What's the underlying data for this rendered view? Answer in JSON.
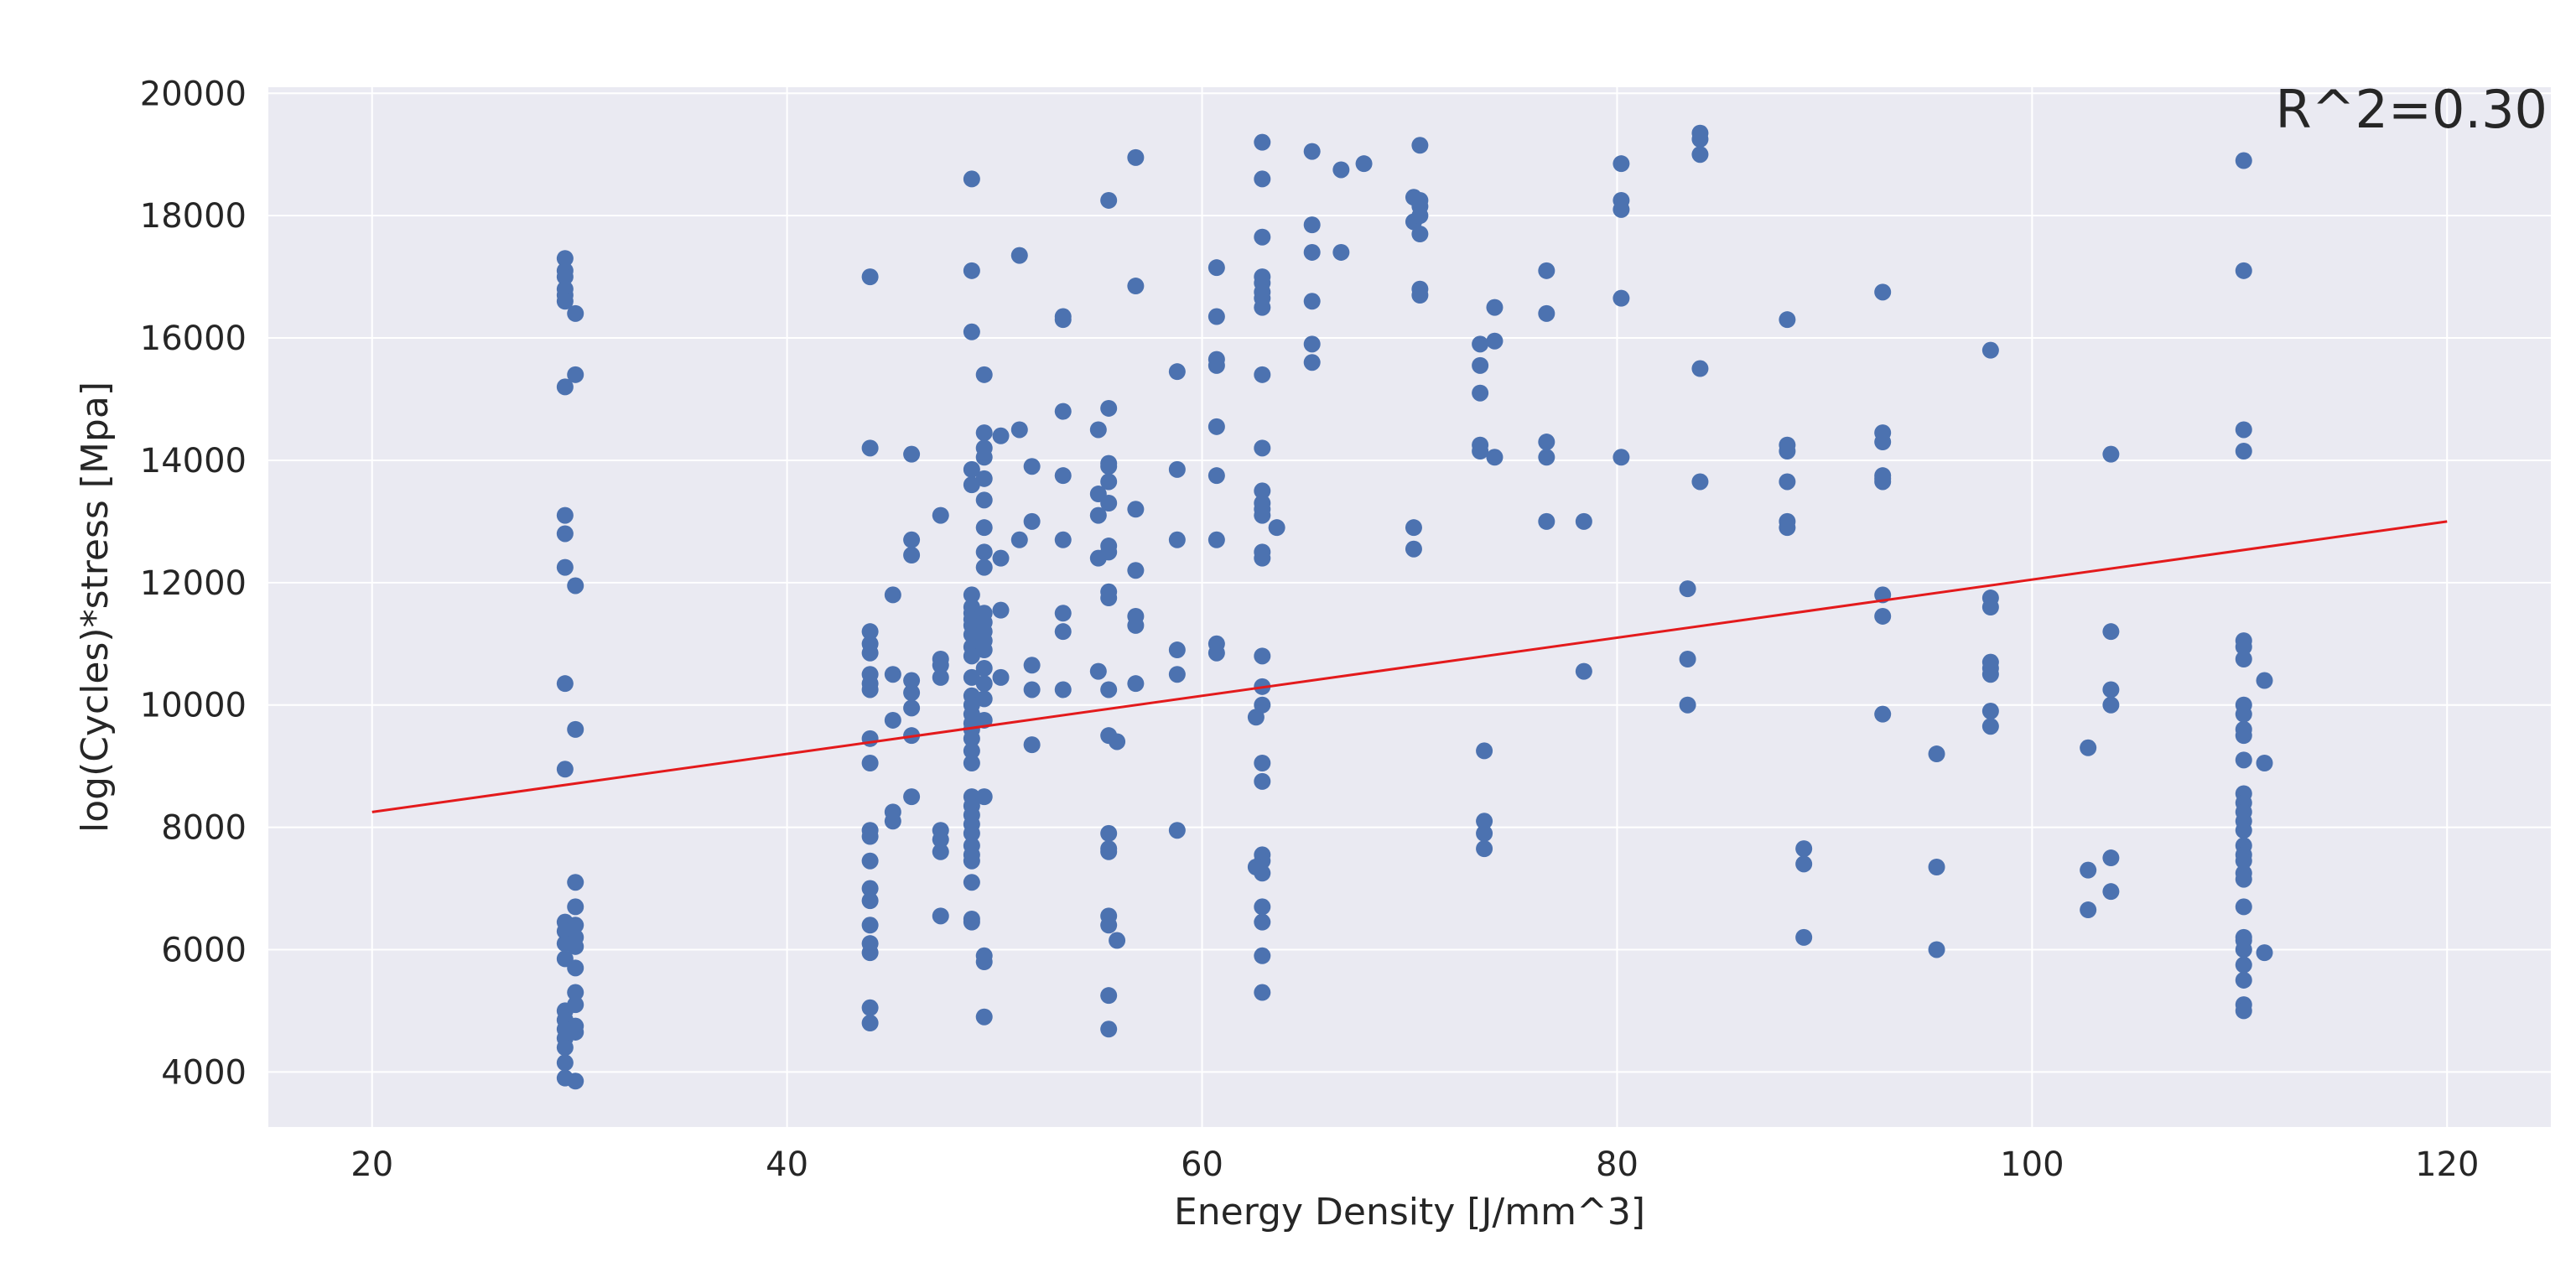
{
  "chart_data": {
    "type": "scatter",
    "title": "",
    "xlabel": "Energy Density [J/mm^3]",
    "ylabel": "log(Cycles)*stress [Mpa]",
    "xlim": [
      15,
      125
    ],
    "ylim": [
      3100,
      20100
    ],
    "xticks": [
      20,
      40,
      60,
      80,
      100,
      120
    ],
    "yticks": [
      4000,
      6000,
      8000,
      10000,
      12000,
      14000,
      16000,
      18000,
      20000
    ],
    "grid": true,
    "annotation": "R^2=0.30",
    "colors": {
      "points": "#4c72b0",
      "fit_line": "#e31a1c",
      "plot_bg": "#eaeaf2",
      "grid": "#ffffff"
    },
    "fit_line": {
      "x": [
        20,
        120
      ],
      "y": [
        8250,
        13000
      ]
    },
    "points": [
      [
        29.3,
        17300
      ],
      [
        29.3,
        17100
      ],
      [
        29.3,
        17000
      ],
      [
        29.3,
        16800
      ],
      [
        29.3,
        16700
      ],
      [
        29.3,
        16600
      ],
      [
        29.8,
        16400
      ],
      [
        29.8,
        15400
      ],
      [
        29.3,
        15200
      ],
      [
        29.3,
        13100
      ],
      [
        29.3,
        12800
      ],
      [
        29.3,
        12250
      ],
      [
        29.8,
        11950
      ],
      [
        29.3,
        10350
      ],
      [
        29.8,
        9600
      ],
      [
        29.3,
        8950
      ],
      [
        29.8,
        7100
      ],
      [
        29.8,
        6700
      ],
      [
        29.3,
        6450
      ],
      [
        29.8,
        6400
      ],
      [
        29.3,
        6300
      ],
      [
        29.8,
        6200
      ],
      [
        29.3,
        6100
      ],
      [
        29.8,
        6050
      ],
      [
        29.3,
        5850
      ],
      [
        29.8,
        5700
      ],
      [
        29.8,
        5300
      ],
      [
        29.8,
        5100
      ],
      [
        29.3,
        5000
      ],
      [
        29.3,
        4850
      ],
      [
        29.8,
        4750
      ],
      [
        29.3,
        4700
      ],
      [
        29.8,
        4650
      ],
      [
        29.3,
        4550
      ],
      [
        29.3,
        4400
      ],
      [
        29.3,
        4150
      ],
      [
        29.3,
        3900
      ],
      [
        29.8,
        3850
      ],
      [
        44,
        17000
      ],
      [
        44,
        14200
      ],
      [
        44,
        11200
      ],
      [
        44,
        11000
      ],
      [
        44,
        10850
      ],
      [
        44,
        10500
      ],
      [
        44,
        10350
      ],
      [
        44,
        10250
      ],
      [
        44,
        9450
      ],
      [
        44,
        9050
      ],
      [
        44,
        7950
      ],
      [
        44,
        7850
      ],
      [
        44,
        7450
      ],
      [
        44,
        7000
      ],
      [
        44,
        6800
      ],
      [
        44,
        6400
      ],
      [
        44,
        6100
      ],
      [
        44,
        5950
      ],
      [
        44,
        5050
      ],
      [
        44,
        4800
      ],
      [
        45.1,
        11800
      ],
      [
        45.1,
        10500
      ],
      [
        45.1,
        9750
      ],
      [
        45.1,
        8250
      ],
      [
        45.1,
        8100
      ],
      [
        46,
        14100
      ],
      [
        46,
        12700
      ],
      [
        46,
        12450
      ],
      [
        46,
        10400
      ],
      [
        46,
        10200
      ],
      [
        46,
        9950
      ],
      [
        46,
        9500
      ],
      [
        46,
        8500
      ],
      [
        47.4,
        13100
      ],
      [
        47.4,
        10750
      ],
      [
        47.4,
        10650
      ],
      [
        47.4,
        10450
      ],
      [
        47.4,
        7950
      ],
      [
        47.4,
        7800
      ],
      [
        47.4,
        7600
      ],
      [
        47.4,
        6550
      ],
      [
        48.9,
        18600
      ],
      [
        48.9,
        17100
      ],
      [
        48.9,
        16100
      ],
      [
        48.9,
        13850
      ],
      [
        48.9,
        13600
      ],
      [
        48.9,
        11800
      ],
      [
        48.9,
        11600
      ],
      [
        48.9,
        11500
      ],
      [
        48.9,
        11400
      ],
      [
        48.9,
        11300
      ],
      [
        48.9,
        11150
      ],
      [
        48.9,
        10950
      ],
      [
        48.9,
        10800
      ],
      [
        48.9,
        10450
      ],
      [
        48.9,
        10150
      ],
      [
        48.9,
        10000
      ],
      [
        48.9,
        9850
      ],
      [
        48.9,
        9700
      ],
      [
        48.9,
        9600
      ],
      [
        48.9,
        9450
      ],
      [
        48.9,
        9250
      ],
      [
        48.9,
        9050
      ],
      [
        48.9,
        8500
      ],
      [
        48.9,
        8350
      ],
      [
        48.9,
        8200
      ],
      [
        48.9,
        8050
      ],
      [
        48.9,
        7900
      ],
      [
        48.9,
        7700
      ],
      [
        48.9,
        7550
      ],
      [
        48.9,
        7450
      ],
      [
        48.9,
        7100
      ],
      [
        48.9,
        6500
      ],
      [
        48.9,
        6450
      ],
      [
        49.5,
        15400
      ],
      [
        49.5,
        14450
      ],
      [
        49.5,
        14200
      ],
      [
        49.5,
        14050
      ],
      [
        49.5,
        13700
      ],
      [
        49.5,
        13350
      ],
      [
        49.5,
        12900
      ],
      [
        49.5,
        12500
      ],
      [
        49.5,
        12250
      ],
      [
        49.5,
        11500
      ],
      [
        49.5,
        11350
      ],
      [
        49.5,
        11200
      ],
      [
        49.5,
        11050
      ],
      [
        49.5,
        10900
      ],
      [
        49.5,
        10600
      ],
      [
        49.5,
        10350
      ],
      [
        49.5,
        10100
      ],
      [
        49.5,
        9750
      ],
      [
        49.5,
        8500
      ],
      [
        49.5,
        5900
      ],
      [
        49.5,
        5800
      ],
      [
        49.5,
        4900
      ],
      [
        50.3,
        14400
      ],
      [
        50.3,
        12400
      ],
      [
        50.3,
        11550
      ],
      [
        50.3,
        10450
      ],
      [
        51.2,
        17350
      ],
      [
        51.2,
        14500
      ],
      [
        51.2,
        12700
      ],
      [
        51.8,
        13900
      ],
      [
        51.8,
        13000
      ],
      [
        51.8,
        10650
      ],
      [
        51.8,
        10250
      ],
      [
        51.8,
        9350
      ],
      [
        53.3,
        16350
      ],
      [
        53.3,
        16300
      ],
      [
        53.3,
        14800
      ],
      [
        53.3,
        13750
      ],
      [
        53.3,
        12700
      ],
      [
        53.3,
        11500
      ],
      [
        53.3,
        11200
      ],
      [
        53.3,
        10250
      ],
      [
        55,
        14500
      ],
      [
        55,
        13450
      ],
      [
        55,
        13100
      ],
      [
        55,
        12400
      ],
      [
        55,
        10550
      ],
      [
        55.5,
        18250
      ],
      [
        55.5,
        14850
      ],
      [
        55.5,
        13950
      ],
      [
        55.5,
        13900
      ],
      [
        55.5,
        13650
      ],
      [
        55.5,
        13300
      ],
      [
        55.5,
        12600
      ],
      [
        55.5,
        12500
      ],
      [
        55.5,
        11850
      ],
      [
        55.5,
        11750
      ],
      [
        55.5,
        10250
      ],
      [
        55.5,
        9500
      ],
      [
        55.5,
        7900
      ],
      [
        55.5,
        7650
      ],
      [
        55.5,
        7600
      ],
      [
        55.5,
        6550
      ],
      [
        55.5,
        6400
      ],
      [
        55.5,
        5250
      ],
      [
        55.5,
        4700
      ],
      [
        55.9,
        9400
      ],
      [
        55.9,
        6150
      ],
      [
        56.8,
        18950
      ],
      [
        56.8,
        16850
      ],
      [
        56.8,
        13200
      ],
      [
        56.8,
        12200
      ],
      [
        56.8,
        11450
      ],
      [
        56.8,
        11300
      ],
      [
        56.8,
        10350
      ],
      [
        58.8,
        15450
      ],
      [
        58.8,
        13850
      ],
      [
        58.8,
        12700
      ],
      [
        58.8,
        10900
      ],
      [
        58.8,
        10500
      ],
      [
        58.8,
        7950
      ],
      [
        60.7,
        17150
      ],
      [
        60.7,
        16350
      ],
      [
        60.7,
        15650
      ],
      [
        60.7,
        15550
      ],
      [
        60.7,
        14550
      ],
      [
        60.7,
        13750
      ],
      [
        60.7,
        12700
      ],
      [
        60.7,
        11000
      ],
      [
        60.7,
        10850
      ],
      [
        62.9,
        19200
      ],
      [
        62.9,
        18600
      ],
      [
        62.9,
        17650
      ],
      [
        62.9,
        17000
      ],
      [
        62.9,
        16900
      ],
      [
        62.9,
        16750
      ],
      [
        62.9,
        16650
      ],
      [
        62.9,
        16500
      ],
      [
        62.9,
        15400
      ],
      [
        62.9,
        14200
      ],
      [
        62.9,
        13500
      ],
      [
        62.9,
        13300
      ],
      [
        62.9,
        13200
      ],
      [
        62.9,
        13100
      ],
      [
        62.9,
        12500
      ],
      [
        62.9,
        12400
      ],
      [
        62.9,
        10800
      ],
      [
        62.9,
        10300
      ],
      [
        62.9,
        10000
      ],
      [
        62.6,
        9800
      ],
      [
        62.9,
        9050
      ],
      [
        62.9,
        8750
      ],
      [
        62.9,
        7550
      ],
      [
        62.9,
        7450
      ],
      [
        62.6,
        7350
      ],
      [
        62.9,
        7250
      ],
      [
        62.9,
        6700
      ],
      [
        62.9,
        6450
      ],
      [
        62.9,
        5900
      ],
      [
        62.9,
        5300
      ],
      [
        63.6,
        12900
      ],
      [
        65.3,
        19050
      ],
      [
        65.3,
        17850
      ],
      [
        65.3,
        17400
      ],
      [
        65.3,
        16600
      ],
      [
        65.3,
        15900
      ],
      [
        65.3,
        15600
      ],
      [
        66.7,
        18750
      ],
      [
        66.7,
        17400
      ],
      [
        67.8,
        18850
      ],
      [
        70.2,
        18300
      ],
      [
        70.2,
        17900
      ],
      [
        70.2,
        12900
      ],
      [
        70.2,
        12550
      ],
      [
        70.5,
        19150
      ],
      [
        70.5,
        18250
      ],
      [
        70.5,
        18150
      ],
      [
        70.5,
        18000
      ],
      [
        70.5,
        17700
      ],
      [
        70.5,
        16800
      ],
      [
        70.5,
        16700
      ],
      [
        73.4,
        15900
      ],
      [
        73.4,
        15550
      ],
      [
        73.4,
        15100
      ],
      [
        73.4,
        14250
      ],
      [
        73.4,
        14150
      ],
      [
        73.6,
        9250
      ],
      [
        73.6,
        8100
      ],
      [
        73.6,
        7900
      ],
      [
        73.6,
        7650
      ],
      [
        74.1,
        16500
      ],
      [
        74.1,
        15950
      ],
      [
        74.1,
        14050
      ],
      [
        76.6,
        17100
      ],
      [
        76.6,
        16400
      ],
      [
        76.6,
        14300
      ],
      [
        76.6,
        14050
      ],
      [
        76.6,
        13000
      ],
      [
        78.4,
        13000
      ],
      [
        78.4,
        10550
      ],
      [
        80.2,
        18850
      ],
      [
        80.2,
        18250
      ],
      [
        80.2,
        18100
      ],
      [
        80.2,
        16650
      ],
      [
        80.2,
        14050
      ],
      [
        83.4,
        11900
      ],
      [
        83.4,
        10750
      ],
      [
        83.4,
        10000
      ],
      [
        84,
        19350
      ],
      [
        84,
        19250
      ],
      [
        84,
        19000
      ],
      [
        84,
        15500
      ],
      [
        84,
        13650
      ],
      [
        88.2,
        16300
      ],
      [
        88.2,
        14250
      ],
      [
        88.2,
        14150
      ],
      [
        88.2,
        13650
      ],
      [
        88.2,
        13000
      ],
      [
        88.2,
        12900
      ],
      [
        89,
        7650
      ],
      [
        89,
        7400
      ],
      [
        89,
        6200
      ],
      [
        92.8,
        16750
      ],
      [
        92.8,
        14450
      ],
      [
        92.8,
        14300
      ],
      [
        92.8,
        13750
      ],
      [
        92.8,
        13700
      ],
      [
        92.8,
        13650
      ],
      [
        92.8,
        11800
      ],
      [
        92.8,
        11450
      ],
      [
        92.8,
        9850
      ],
      [
        95.4,
        9200
      ],
      [
        95.4,
        7350
      ],
      [
        95.4,
        6000
      ],
      [
        98,
        15800
      ],
      [
        98,
        11750
      ],
      [
        98,
        11600
      ],
      [
        98,
        10700
      ],
      [
        98,
        10600
      ],
      [
        98,
        10500
      ],
      [
        98,
        9900
      ],
      [
        98,
        9650
      ],
      [
        102.7,
        9300
      ],
      [
        102.7,
        7300
      ],
      [
        102.7,
        6650
      ],
      [
        103.8,
        14100
      ],
      [
        103.8,
        11200
      ],
      [
        103.8,
        10250
      ],
      [
        103.8,
        10000
      ],
      [
        103.8,
        7500
      ],
      [
        103.8,
        6950
      ],
      [
        110.2,
        18900
      ],
      [
        110.2,
        17100
      ],
      [
        110.2,
        14500
      ],
      [
        110.2,
        14150
      ],
      [
        110.2,
        11050
      ],
      [
        110.2,
        10950
      ],
      [
        110.2,
        10750
      ],
      [
        110.2,
        10000
      ],
      [
        110.2,
        9850
      ],
      [
        110.2,
        9600
      ],
      [
        110.2,
        9500
      ],
      [
        110.2,
        9100
      ],
      [
        110.2,
        8550
      ],
      [
        110.2,
        8400
      ],
      [
        110.2,
        8250
      ],
      [
        110.2,
        8100
      ],
      [
        110.2,
        7950
      ],
      [
        110.2,
        7700
      ],
      [
        110.2,
        7550
      ],
      [
        110.2,
        7450
      ],
      [
        110.2,
        7250
      ],
      [
        110.2,
        7150
      ],
      [
        110.2,
        6700
      ],
      [
        110.2,
        6200
      ],
      [
        110.2,
        6150
      ],
      [
        110.2,
        6000
      ],
      [
        110.2,
        5750
      ],
      [
        110.2,
        5500
      ],
      [
        110.2,
        5100
      ],
      [
        110.2,
        5000
      ],
      [
        111.2,
        10400
      ],
      [
        111.2,
        9050
      ],
      [
        111.2,
        5950
      ]
    ]
  }
}
